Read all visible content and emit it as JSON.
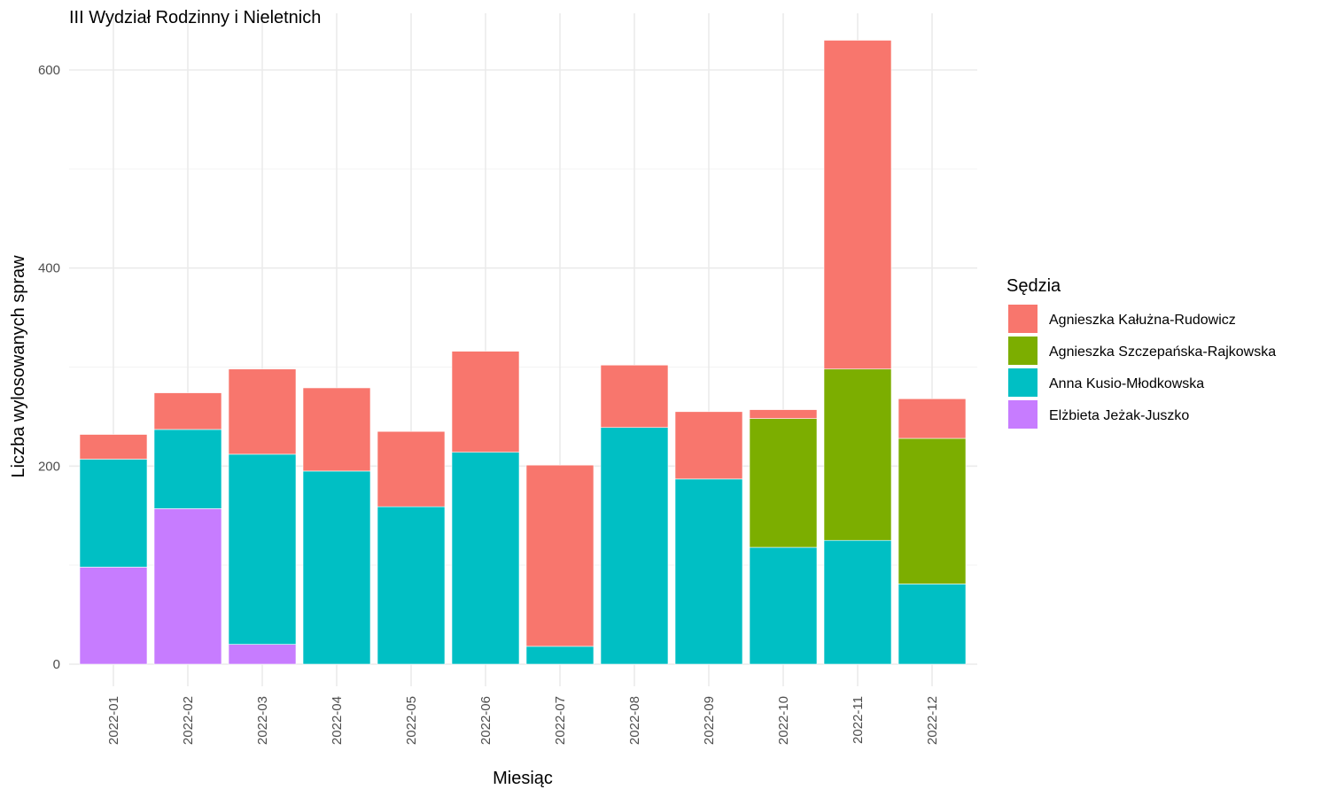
{
  "chart_data": {
    "type": "bar",
    "stacked": true,
    "title": "III Wydział Rodzinny i Nieletnich",
    "xlabel": "Miesiąc",
    "ylabel": "Liczba wylosowanych spraw",
    "ylim": [
      0,
      630
    ],
    "y_ticks": [
      0,
      200,
      400,
      600
    ],
    "grid": true,
    "legend_title": "Sędzia",
    "legend_position": "right",
    "categories": [
      "2022-01",
      "2022-02",
      "2022-03",
      "2022-04",
      "2022-05",
      "2022-06",
      "2022-07",
      "2022-08",
      "2022-09",
      "2022-10",
      "2022-11",
      "2022-12"
    ],
    "series": [
      {
        "name": "Elżbieta Jeżak-Juszko",
        "color": "#C77CFF",
        "values": [
          98,
          157,
          20,
          0,
          0,
          0,
          0,
          0,
          0,
          0,
          0,
          0
        ]
      },
      {
        "name": "Anna Kusio-Młodkowska",
        "color": "#00BFC4",
        "values": [
          109,
          80,
          192,
          195,
          159,
          214,
          18,
          239,
          187,
          118,
          125,
          81
        ]
      },
      {
        "name": "Agnieszka Szczepańska-Rajkowska",
        "color": "#7CAE00",
        "values": [
          0,
          0,
          0,
          0,
          0,
          0,
          0,
          0,
          0,
          130,
          173,
          147
        ]
      },
      {
        "name": "Agnieszka Kałużna-Rudowicz",
        "color": "#F8766D",
        "values": [
          25,
          37,
          86,
          84,
          76,
          102,
          183,
          63,
          68,
          9,
          332,
          40
        ]
      }
    ],
    "legend_order": [
      "Agnieszka Kałużna-Rudowicz",
      "Agnieszka Szczepańska-Rajkowska",
      "Anna Kusio-Młodkowska",
      "Elżbieta Jeżak-Juszko"
    ]
  }
}
